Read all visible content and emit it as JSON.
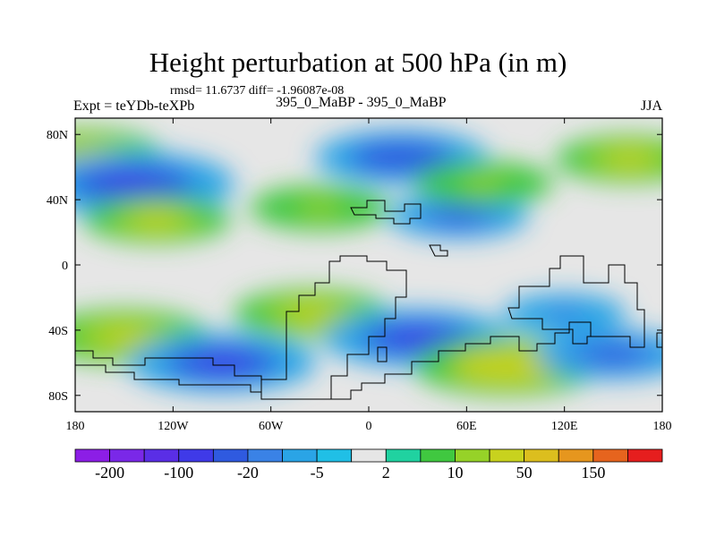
{
  "chart_data": {
    "type": "heatmap",
    "title": "Height perturbation at 500 hPa (in m)",
    "stats_line": "rmsd= 11.6737 diff= -1.96087e-08",
    "left_label": "Expt = teYDb-teXPb",
    "center_label": "395_0_MaBP - 395_0_MaBP",
    "right_label": "JJA",
    "xlim": [
      -180,
      180
    ],
    "ylim": [
      -90,
      90
    ],
    "x_ticks": [
      {
        "value": -180,
        "label": "180"
      },
      {
        "value": -120,
        "label": "120W"
      },
      {
        "value": -60,
        "label": "60W"
      },
      {
        "value": 0,
        "label": "0"
      },
      {
        "value": 60,
        "label": "60E"
      },
      {
        "value": 120,
        "label": "120E"
      },
      {
        "value": 180,
        "label": "180"
      }
    ],
    "y_ticks": [
      {
        "value": 80,
        "label": "80N"
      },
      {
        "value": 40,
        "label": "40N"
      },
      {
        "value": 0,
        "label": "0"
      },
      {
        "value": -40,
        "label": "40S"
      },
      {
        "value": -80,
        "label": "80S"
      }
    ],
    "colorbar": {
      "colors": [
        "#8c1ee6",
        "#7a28e8",
        "#5a2ee6",
        "#3f3ae8",
        "#2f5ae0",
        "#3a82e6",
        "#2aa4e6",
        "#20bfe6",
        "#e6e6e6",
        "#20d2a0",
        "#40c840",
        "#96d228",
        "#c8d21e",
        "#dcbe1e",
        "#e6961e",
        "#e6641e",
        "#e61e1e"
      ],
      "label_positions": [
        1,
        3,
        5,
        7,
        9,
        11,
        13,
        15
      ],
      "labels": [
        "-200",
        "-100",
        "-20",
        "-5",
        "2",
        "10",
        "50",
        "150"
      ]
    },
    "anomaly_centers": [
      {
        "lon": -175,
        "lat": 68,
        "value": 30
      },
      {
        "lon": -145,
        "lat": 50,
        "value": -60
      },
      {
        "lon": -130,
        "lat": 28,
        "value": 25
      },
      {
        "lon": -30,
        "lat": 35,
        "value": 20
      },
      {
        "lon": 20,
        "lat": 66,
        "value": -40
      },
      {
        "lon": 55,
        "lat": 30,
        "value": -20
      },
      {
        "lon": 70,
        "lat": 50,
        "value": 20
      },
      {
        "lon": 160,
        "lat": 65,
        "value": 25
      },
      {
        "lon": -150,
        "lat": -44,
        "value": 40
      },
      {
        "lon": -90,
        "lat": -60,
        "value": -50
      },
      {
        "lon": -35,
        "lat": -30,
        "value": 30
      },
      {
        "lon": 30,
        "lat": -45,
        "value": -50
      },
      {
        "lon": 85,
        "lat": -62,
        "value": 50
      },
      {
        "lon": 150,
        "lat": -55,
        "value": -30
      },
      {
        "lon": 120,
        "lat": -30,
        "value": -10
      }
    ]
  }
}
